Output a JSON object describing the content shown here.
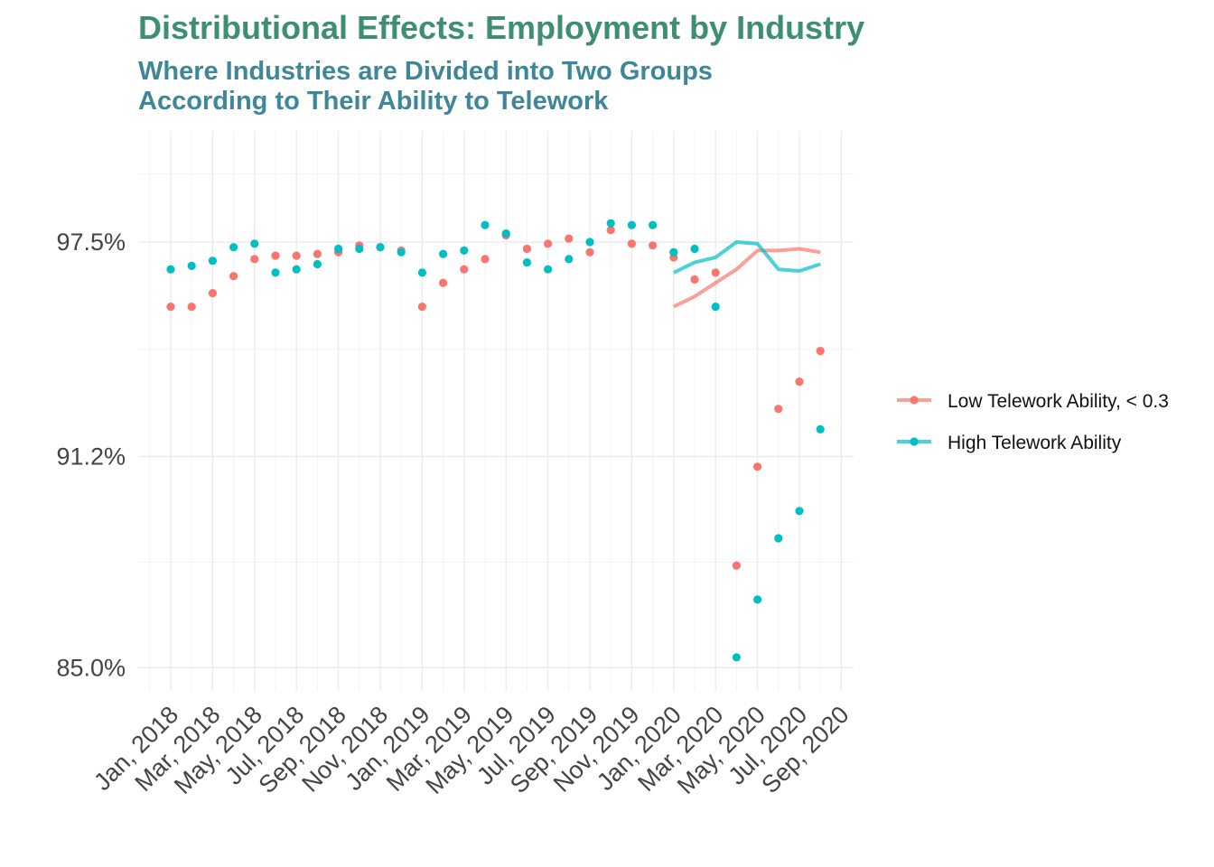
{
  "chart_data": {
    "type": "line",
    "title": "Distributional Effects: Employment by Industry",
    "subtitle": [
      "Where Industries are Divided into Two Groups",
      "According to Their Ability to Telework"
    ],
    "xlabel": "",
    "ylabel": "",
    "x_ticks": [
      "Jan, 2018",
      "Mar, 2018",
      "May, 2018",
      "Jul, 2018",
      "Sep, 2018",
      "Nov, 2018",
      "Jan, 2019",
      "Mar, 2019",
      "May, 2019",
      "Jul, 2019",
      "Sep, 2019",
      "Nov, 2019",
      "Jan, 2020",
      "Mar, 2020",
      "May, 2020",
      "Jul, 2020",
      "Sep, 2020"
    ],
    "y_ticks": [
      97.5,
      91.2,
      85.0
    ],
    "y_tick_labels": [
      "97.5%",
      "91.2%",
      "85.0%"
    ],
    "ylim": [
      85.0,
      100.0
    ],
    "grid": true,
    "legend_position": "right",
    "series": [
      {
        "name": "Low Telework Ability, < 0.3",
        "color": "#F8766D",
        "points": [
          95.6,
          95.6,
          96.0,
          96.5,
          97.0,
          97.1,
          97.1,
          97.15,
          97.2,
          97.4,
          97.35,
          97.25,
          95.6,
          96.3,
          96.7,
          97.0,
          97.7,
          97.3,
          97.45,
          97.6,
          97.2,
          97.85,
          97.45,
          97.4,
          97.05,
          96.4,
          96.6,
          88.0,
          90.9,
          92.6,
          93.4,
          94.3
        ],
        "trend": [
          [
            24,
            95.6
          ],
          [
            25,
            95.9
          ],
          [
            26,
            96.3
          ],
          [
            27,
            96.7
          ],
          [
            28,
            97.25
          ],
          [
            29,
            97.25
          ],
          [
            30,
            97.3
          ],
          [
            31,
            97.2
          ]
        ]
      },
      {
        "name": "High Telework Ability",
        "color": "#00BFC4",
        "points": [
          96.7,
          96.8,
          96.95,
          97.35,
          97.45,
          96.6,
          96.7,
          96.85,
          97.3,
          97.3,
          97.35,
          97.2,
          96.6,
          97.15,
          97.25,
          98.0,
          97.75,
          96.9,
          96.7,
          97.0,
          97.5,
          98.05,
          98.0,
          98.0,
          97.2,
          97.3,
          95.6,
          85.3,
          87.0,
          88.8,
          89.6,
          92.0
        ],
        "trend": [
          [
            24,
            96.6
          ],
          [
            25,
            96.9
          ],
          [
            26,
            97.05
          ],
          [
            27,
            97.5
          ],
          [
            28,
            97.45
          ],
          [
            29,
            96.7
          ],
          [
            30,
            96.65
          ],
          [
            31,
            96.85
          ]
        ]
      }
    ]
  }
}
